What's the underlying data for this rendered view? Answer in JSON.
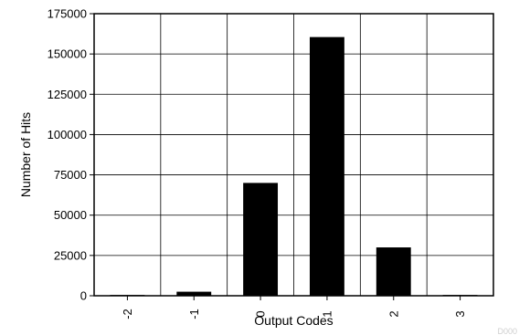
{
  "chart_data": {
    "type": "bar",
    "categories": [
      "-2",
      "-1",
      "0",
      "1",
      "2",
      "3"
    ],
    "values": [
      500,
      2500,
      70000,
      160500,
      30000,
      500
    ],
    "xlabel": "Output Codes",
    "ylabel": "Number of Hits",
    "ylim": [
      0,
      175000
    ],
    "yticks": [
      "0",
      "25000",
      "50000",
      "75000",
      "100000",
      "125000",
      "150000",
      "175000"
    ],
    "grid": true,
    "bar_color": "#000000",
    "watermark": "D000"
  }
}
